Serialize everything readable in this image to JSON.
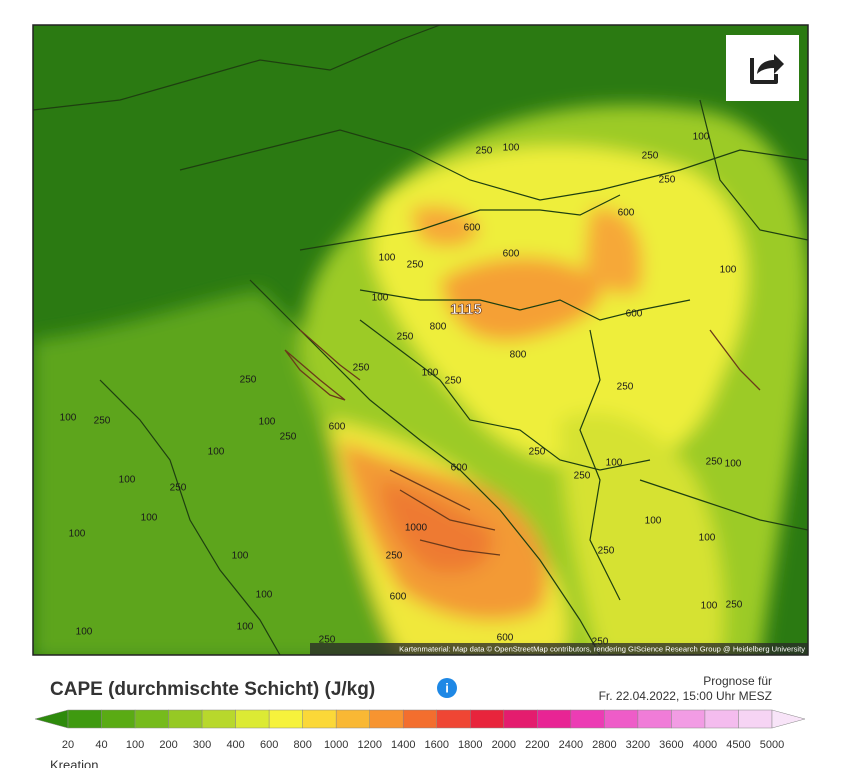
{
  "map": {
    "contour_labels": [
      "250",
      "100",
      "100",
      "250",
      "250",
      "600",
      "600",
      "600",
      "100",
      "250",
      "100",
      "100",
      "800",
      "600",
      "250",
      "800",
      "250",
      "100",
      "250",
      "250",
      "250",
      "100",
      "250",
      "100",
      "600",
      "250",
      "100",
      "250",
      "600",
      "100",
      "250",
      "100",
      "250",
      "100",
      "250",
      "100",
      "100",
      "1000",
      "100",
      "100",
      "250",
      "250",
      "100",
      "100",
      "600",
      "100",
      "250",
      "100",
      "100",
      "250",
      "600",
      "250"
    ],
    "max_label": "1115",
    "attribution": "Kartenmaterial: Map data © OpenStreetMap contributors, rendering GIScience Research Group @ Heidelberg University"
  },
  "header": {
    "title": "CAPE (durchmischte Schicht) (J/kg)",
    "forecast_label": "Prognose für",
    "forecast_time": "Fr. 22.04.2022, 15:00 Uhr MESZ"
  },
  "legend": {
    "labels": [
      20,
      40,
      100,
      200,
      300,
      400,
      600,
      800,
      1000,
      1200,
      1400,
      1600,
      1800,
      2000,
      2200,
      2400,
      2800,
      3200,
      3600,
      4000,
      4500,
      5000
    ],
    "colors": [
      "#2e8a0c",
      "#3f9a10",
      "#5aab14",
      "#76bb1c",
      "#96c924",
      "#b8d82c",
      "#dcea34",
      "#f6f23c",
      "#fbd838",
      "#f9b834",
      "#f79430",
      "#f36e2e",
      "#ef4634",
      "#e8243c",
      "#e41c6e",
      "#e82494",
      "#ec3cb4",
      "#ee5cc8",
      "#f07cd8",
      "#f29ce4",
      "#f4bcee",
      "#f6d4f4",
      "#f8e4f8"
    ]
  },
  "footer": {
    "text": "Kreation"
  }
}
